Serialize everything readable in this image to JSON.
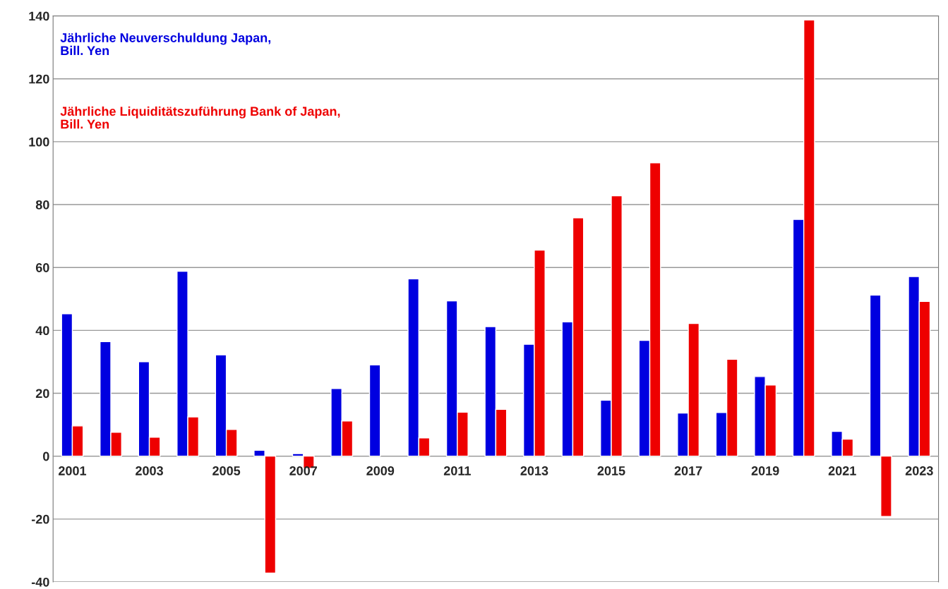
{
  "chart_data": {
    "type": "bar",
    "categories": [
      "2001",
      null,
      "2003",
      null,
      "2005",
      null,
      "2007",
      null,
      "2009",
      null,
      "2011",
      null,
      "2013",
      null,
      "2015",
      null,
      "2017",
      null,
      "2019",
      null,
      "2021",
      null,
      "2023"
    ],
    "series": [
      {
        "name": "Jährliche Neuverschuldung Japan,\nBill. Yen",
        "color": "#0000e0",
        "values": [
          45.3,
          36.4,
          30.0,
          58.8,
          32.2,
          1.9,
          0.8,
          21.5,
          29.0,
          56.4,
          49.4,
          41.2,
          35.6,
          42.7,
          17.8,
          36.8,
          13.7,
          13.9,
          25.3,
          75.3,
          7.9,
          51.2,
          57.1
        ]
      },
      {
        "name": "Jährliche Liquiditätszuführung Bank of Japan,\nBill. Yen",
        "color": "#ee0000",
        "values": [
          9.6,
          7.6,
          6.0,
          12.5,
          8.5,
          -37.2,
          -3.9,
          11.2,
          null,
          5.8,
          14.0,
          14.9,
          65.5,
          75.8,
          82.8,
          93.3,
          42.2,
          30.8,
          22.6,
          138.7,
          5.4,
          -19.2,
          49.2
        ]
      }
    ],
    "ylim": [
      -40,
      140
    ],
    "yticks": [
      -40,
      -20,
      0,
      20,
      40,
      60,
      80,
      100,
      120,
      140
    ],
    "grid": "y",
    "legend": false
  }
}
